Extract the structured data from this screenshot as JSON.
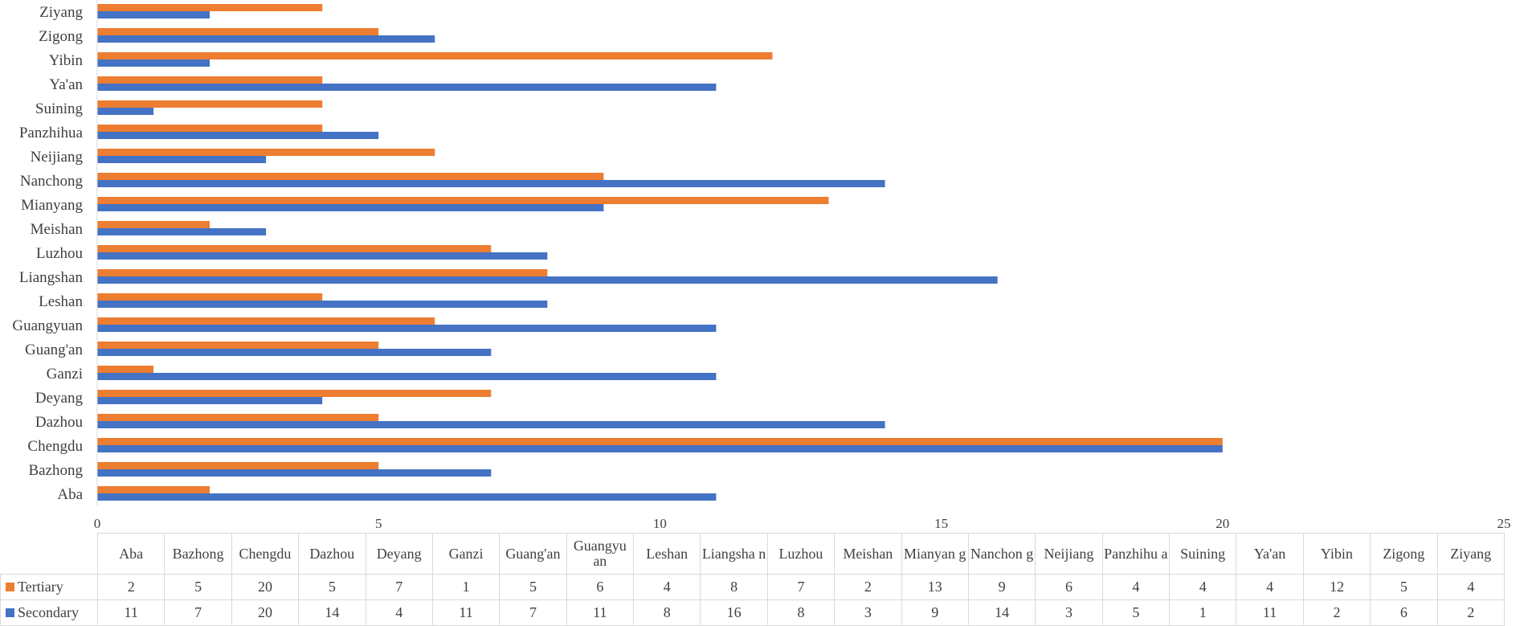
{
  "chart_data": {
    "type": "bar",
    "orientation": "horizontal",
    "categories": [
      "Aba",
      "Bazhong",
      "Chengdu",
      "Dazhou",
      "Deyang",
      "Ganzi",
      "Guang'an",
      "Guangyuan",
      "Leshan",
      "Liangshan",
      "Luzhou",
      "Meishan",
      "Mianyang",
      "Nanchong",
      "Neijiang",
      "Panzhihua",
      "Suining",
      "Ya'an",
      "Yibin",
      "Zigong",
      "Ziyang"
    ],
    "table_headers": [
      "Aba",
      "Bazhong",
      "Chengdu",
      "Dazhou",
      "Deyang",
      "Ganzi",
      "Guang'an",
      "Guangyu an",
      "Leshan",
      "Liangsha n",
      "Luzhou",
      "Meishan",
      "Mianyan g",
      "Nanchon g",
      "Neijiang",
      "Panzhihu a",
      "Suining",
      "Ya'an",
      "Yibin",
      "Zigong",
      "Ziyang"
    ],
    "series": [
      {
        "name": "Tertiary",
        "color": "#ED7D31",
        "values": [
          2,
          5,
          20,
          5,
          7,
          1,
          5,
          6,
          4,
          8,
          7,
          2,
          13,
          9,
          6,
          4,
          4,
          4,
          12,
          5,
          4
        ]
      },
      {
        "name": "Secondary",
        "color": "#4472C4",
        "values": [
          11,
          7,
          20,
          14,
          4,
          11,
          7,
          11,
          8,
          16,
          8,
          3,
          9,
          14,
          3,
          5,
          1,
          11,
          2,
          6,
          2
        ]
      }
    ],
    "xlim": [
      0,
      25
    ],
    "xticks": [
      0,
      5,
      10,
      15,
      20,
      25
    ],
    "grid": false,
    "legend": "data-table"
  }
}
